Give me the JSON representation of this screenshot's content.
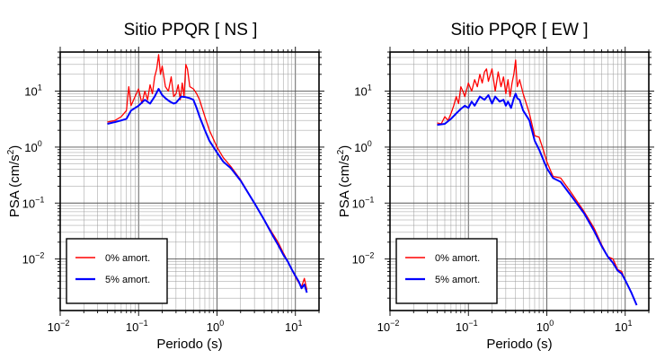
{
  "chart_data": [
    {
      "type": "line",
      "title": "Sitio PPQR [ NS ]",
      "xlabel": "Periodo (s)",
      "ylabel_main": "PSA (cm/s",
      "ylabel_sup": "2",
      "ylabel_close": ")",
      "xscale": "log",
      "yscale": "log",
      "xlim": [
        0.01,
        20
      ],
      "ylim": [
        0.0012,
        50
      ],
      "grid": true,
      "legend_position": "bottom-left",
      "series": [
        {
          "name": "0% amort.",
          "color": "#ff0000",
          "x": [
            0.04,
            0.05,
            0.06,
            0.07,
            0.075,
            0.08,
            0.09,
            0.1,
            0.11,
            0.12,
            0.13,
            0.14,
            0.15,
            0.16,
            0.17,
            0.18,
            0.19,
            0.2,
            0.22,
            0.24,
            0.26,
            0.28,
            0.3,
            0.32,
            0.34,
            0.36,
            0.38,
            0.4,
            0.42,
            0.45,
            0.5,
            0.55,
            0.6,
            0.7,
            0.8,
            1.0,
            1.2,
            1.5,
            2,
            3,
            4,
            5,
            6,
            7,
            8,
            9,
            10,
            11,
            12,
            13,
            14
          ],
          "y": [
            2.8,
            3.0,
            3.5,
            4.5,
            12.0,
            5.5,
            8.0,
            11.0,
            6.0,
            10.0,
            7.0,
            13.0,
            9.0,
            18.0,
            25.0,
            45.0,
            20.0,
            28.0,
            12.0,
            10.0,
            18.0,
            8.0,
            9.0,
            13.0,
            7.0,
            14.0,
            8.0,
            30.0,
            25.0,
            12.0,
            11.0,
            9.0,
            7.0,
            3.5,
            2.0,
            1.0,
            0.65,
            0.45,
            0.26,
            0.1,
            0.05,
            0.03,
            0.02,
            0.013,
            0.009,
            0.0065,
            0.0048,
            0.0038,
            0.0032,
            0.0045,
            0.0028
          ]
        },
        {
          "name": "5% amort.",
          "color": "#0000ff",
          "x": [
            0.04,
            0.05,
            0.06,
            0.07,
            0.08,
            0.09,
            0.1,
            0.12,
            0.14,
            0.16,
            0.18,
            0.2,
            0.22,
            0.25,
            0.28,
            0.3,
            0.35,
            0.4,
            0.45,
            0.5,
            0.55,
            0.6,
            0.7,
            0.8,
            1.0,
            1.2,
            1.5,
            2,
            3,
            4,
            5,
            6,
            7,
            8,
            9,
            10,
            11,
            12,
            13,
            14
          ],
          "y": [
            2.6,
            2.8,
            3.0,
            3.2,
            4.5,
            5.0,
            5.5,
            7.0,
            6.0,
            8.0,
            11.0,
            8.5,
            7.5,
            6.5,
            6.0,
            6.2,
            8.0,
            7.8,
            7.5,
            7.0,
            5.0,
            3.5,
            2.0,
            1.3,
            0.8,
            0.55,
            0.42,
            0.25,
            0.1,
            0.05,
            0.028,
            0.018,
            0.012,
            0.009,
            0.0065,
            0.005,
            0.004,
            0.003,
            0.0035,
            0.0025
          ]
        }
      ]
    },
    {
      "type": "line",
      "title": "Sitio PPQR [ EW ]",
      "xlabel": "Periodo (s)",
      "ylabel_main": "PSA (cm/s",
      "ylabel_sup": "2",
      "ylabel_close": ")",
      "xscale": "log",
      "yscale": "log",
      "xlim": [
        0.01,
        20
      ],
      "ylim": [
        0.0012,
        50
      ],
      "grid": true,
      "legend_position": "bottom-left",
      "series": [
        {
          "name": "0% amort.",
          "color": "#ff0000",
          "x": [
            0.04,
            0.045,
            0.05,
            0.055,
            0.06,
            0.065,
            0.07,
            0.075,
            0.08,
            0.085,
            0.09,
            0.1,
            0.11,
            0.12,
            0.13,
            0.14,
            0.15,
            0.16,
            0.17,
            0.18,
            0.2,
            0.22,
            0.24,
            0.26,
            0.28,
            0.3,
            0.32,
            0.34,
            0.36,
            0.38,
            0.4,
            0.42,
            0.45,
            0.5,
            0.6,
            0.7,
            0.8,
            0.9,
            1.0,
            1.2,
            1.5,
            2,
            3,
            4,
            5,
            6,
            7,
            8,
            9,
            10,
            12,
            14
          ],
          "y": [
            2.7,
            2.6,
            3.5,
            3.0,
            4.0,
            5.5,
            8.0,
            6.0,
            12.0,
            10.0,
            8.0,
            14.0,
            10.0,
            16.0,
            12.0,
            20.0,
            14.0,
            22.0,
            25.0,
            15.0,
            25.0,
            10.0,
            22.0,
            12.0,
            18.0,
            9.0,
            16.0,
            8.0,
            14.0,
            20.0,
            36.0,
            12.0,
            16.0,
            9.0,
            4.0,
            1.6,
            1.5,
            0.9,
            0.55,
            0.3,
            0.28,
            0.16,
            0.07,
            0.036,
            0.018,
            0.011,
            0.01,
            0.0065,
            0.006,
            0.0042,
            0.0025,
            0.0015
          ]
        },
        {
          "name": "5% amort.",
          "color": "#0000ff",
          "x": [
            0.04,
            0.05,
            0.06,
            0.07,
            0.08,
            0.09,
            0.1,
            0.11,
            0.12,
            0.14,
            0.16,
            0.18,
            0.2,
            0.22,
            0.25,
            0.28,
            0.3,
            0.32,
            0.35,
            0.38,
            0.4,
            0.42,
            0.45,
            0.5,
            0.6,
            0.7,
            0.8,
            0.9,
            1.0,
            1.2,
            1.5,
            2,
            3,
            4,
            5,
            6,
            7,
            8,
            9,
            10,
            12,
            14
          ],
          "y": [
            2.5,
            2.6,
            3.2,
            4.0,
            4.8,
            5.5,
            5.0,
            6.5,
            5.5,
            8.0,
            7.0,
            8.5,
            6.0,
            8.0,
            6.5,
            7.0,
            5.5,
            6.5,
            5.0,
            7.5,
            9.0,
            7.5,
            7.0,
            4.5,
            3.0,
            1.3,
            0.9,
            0.6,
            0.42,
            0.28,
            0.24,
            0.14,
            0.065,
            0.032,
            0.017,
            0.011,
            0.0085,
            0.0062,
            0.0055,
            0.0042,
            0.0025,
            0.0015
          ]
        }
      ]
    }
  ]
}
